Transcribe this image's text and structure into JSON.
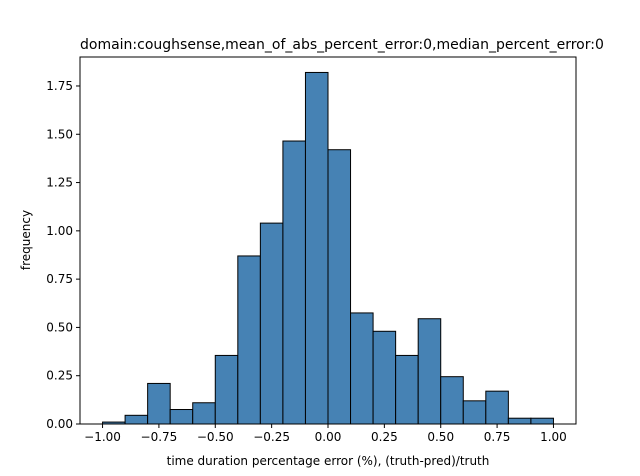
{
  "chart_data": {
    "type": "bar",
    "title": "domain:coughsense,mean_of_abs_percent_error:0,median_percent_error:0",
    "xlabel": "time duration percentage error (%), (truth-pred)/truth",
    "ylabel": "frequency",
    "xlim": [
      -1.1,
      1.1
    ],
    "ylim": [
      0,
      1.9
    ],
    "grid": false,
    "bar_color": "#4682b4",
    "edge_color": "#000000",
    "bins": [
      {
        "x0": -1.0,
        "x1": -0.9,
        "value": 0.01
      },
      {
        "x0": -0.9,
        "x1": -0.8,
        "value": 0.045
      },
      {
        "x0": -0.8,
        "x1": -0.7,
        "value": 0.21
      },
      {
        "x0": -0.7,
        "x1": -0.6,
        "value": 0.075
      },
      {
        "x0": -0.6,
        "x1": -0.5,
        "value": 0.11
      },
      {
        "x0": -0.5,
        "x1": -0.4,
        "value": 0.355
      },
      {
        "x0": -0.4,
        "x1": -0.3,
        "value": 0.87
      },
      {
        "x0": -0.3,
        "x1": -0.2,
        "value": 1.04
      },
      {
        "x0": -0.2,
        "x1": -0.1,
        "value": 1.465
      },
      {
        "x0": -0.1,
        "x1": 0.0,
        "value": 1.82
      },
      {
        "x0": 0.0,
        "x1": 0.1,
        "value": 1.42
      },
      {
        "x0": 0.1,
        "x1": 0.2,
        "value": 0.575
      },
      {
        "x0": 0.2,
        "x1": 0.3,
        "value": 0.48
      },
      {
        "x0": 0.3,
        "x1": 0.4,
        "value": 0.355
      },
      {
        "x0": 0.4,
        "x1": 0.5,
        "value": 0.545
      },
      {
        "x0": 0.5,
        "x1": 0.6,
        "value": 0.245
      },
      {
        "x0": 0.6,
        "x1": 0.7,
        "value": 0.12
      },
      {
        "x0": 0.7,
        "x1": 0.8,
        "value": 0.17
      },
      {
        "x0": 0.8,
        "x1": 0.9,
        "value": 0.03
      },
      {
        "x0": 0.9,
        "x1": 1.0,
        "value": 0.03
      }
    ],
    "x_ticks": [
      {
        "value": -1.0,
        "label": "−1.00"
      },
      {
        "value": -0.75,
        "label": "−0.75"
      },
      {
        "value": -0.5,
        "label": "−0.50"
      },
      {
        "value": -0.25,
        "label": "−0.25"
      },
      {
        "value": 0.0,
        "label": "0.00"
      },
      {
        "value": 0.25,
        "label": "0.25"
      },
      {
        "value": 0.5,
        "label": "0.50"
      },
      {
        "value": 0.75,
        "label": "0.75"
      },
      {
        "value": 1.0,
        "label": "1.00"
      }
    ],
    "y_ticks": [
      {
        "value": 0.0,
        "label": "0.00"
      },
      {
        "value": 0.25,
        "label": "0.25"
      },
      {
        "value": 0.5,
        "label": "0.50"
      },
      {
        "value": 0.75,
        "label": "0.75"
      },
      {
        "value": 1.0,
        "label": "1.00"
      },
      {
        "value": 1.25,
        "label": "1.25"
      },
      {
        "value": 1.5,
        "label": "1.50"
      },
      {
        "value": 1.75,
        "label": "1.75"
      }
    ]
  }
}
